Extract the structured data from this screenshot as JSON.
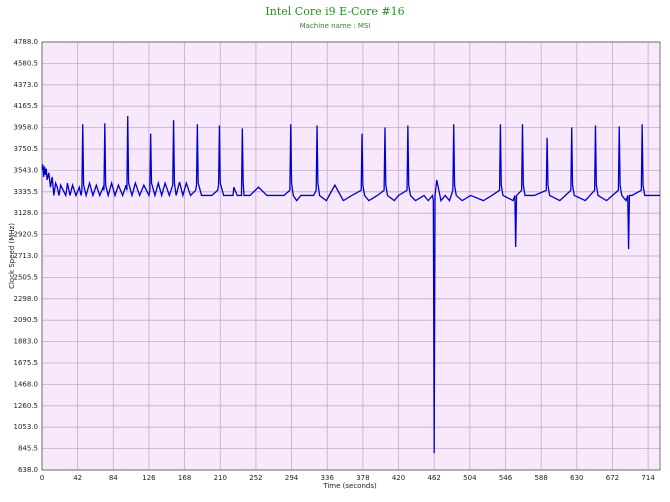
{
  "chart_data": {
    "type": "line",
    "title": "Intel Core i9 E-Core #16",
    "subtitle": "Machine name : MSI",
    "x_label": "Time (seconds)",
    "y_label": "Clock Speed (MHz)",
    "xlim": [
      0,
      728
    ],
    "ylim": [
      638,
      4788
    ],
    "xticks": [
      0,
      42,
      84,
      126,
      168,
      210,
      252,
      294,
      336,
      378,
      420,
      462,
      504,
      546,
      588,
      630,
      672,
      714
    ],
    "yticks": [
      {
        "value": 638,
        "label": "638.0"
      },
      845.5,
      {
        "value": 1053,
        "label": "1053.0"
      },
      1260.5,
      {
        "value": 1468,
        "label": "1468.0"
      },
      1675.5,
      {
        "value": 1883,
        "label": "1883.0"
      },
      2090.5,
      {
        "value": 2298,
        "label": "2298.0"
      },
      2505.5,
      {
        "value": 2713,
        "label": "2713.0"
      },
      2920.5,
      {
        "value": 3128,
        "label": "3128.0"
      },
      3335.5,
      {
        "value": 3543,
        "label": "3543.0"
      },
      3750.5,
      {
        "value": 3958,
        "label": "3958.0"
      },
      4165.5,
      {
        "value": 4373,
        "label": "4373.0"
      },
      4580.5,
      {
        "value": 4788,
        "label": "4788.0"
      }
    ],
    "grid": true,
    "x": [
      0,
      1,
      2,
      3,
      4,
      5,
      6,
      8,
      10,
      12,
      14,
      16,
      18,
      20,
      22,
      25,
      28,
      30,
      33,
      36,
      40,
      44,
      46,
      47,
      48,
      49,
      52,
      56,
      60,
      64,
      68,
      72,
      73,
      74,
      75,
      78,
      82,
      86,
      90,
      95,
      99,
      100,
      101,
      102,
      106,
      110,
      115,
      120,
      126,
      127,
      128,
      129,
      133,
      137,
      141,
      145,
      150,
      154,
      155,
      156,
      158,
      162,
      166,
      170,
      175,
      181,
      182,
      183,
      184,
      188,
      195,
      200,
      207,
      208,
      209,
      210,
      214,
      220,
      225,
      226,
      230,
      235,
      236,
      237,
      238,
      245,
      255,
      265,
      275,
      285,
      292,
      293,
      294,
      296,
      300,
      305,
      320,
      323,
      324,
      325,
      327,
      335,
      345,
      355,
      365,
      376,
      377,
      378,
      380,
      385,
      395,
      403,
      404,
      405,
      407,
      415,
      420,
      430,
      431,
      432,
      434,
      440,
      450,
      455,
      460,
      461,
      462,
      463,
      465,
      470,
      475,
      480,
      484,
      485,
      486,
      488,
      495,
      505,
      520,
      530,
      539,
      540,
      541,
      543,
      555,
      557,
      558,
      559,
      565,
      566,
      567,
      569,
      580,
      594,
      595,
      596,
      598,
      610,
      623,
      624,
      625,
      627,
      640,
      651,
      652,
      653,
      655,
      665,
      679,
      680,
      681,
      683,
      688,
      690,
      691,
      692,
      695,
      706,
      707,
      708,
      710,
      728
    ],
    "series": [
      {
        "name": "Clock Speed",
        "color": "#0000cc",
        "values": [
          3550,
          3600,
          3480,
          3580,
          3500,
          3560,
          3450,
          3520,
          3380,
          3480,
          3300,
          3420,
          3380,
          3300,
          3400,
          3350,
          3300,
          3420,
          3300,
          3400,
          3300,
          3380,
          3300,
          3350,
          3990,
          3400,
          3300,
          3420,
          3300,
          3400,
          3300,
          3380,
          3350,
          4000,
          3400,
          3300,
          3420,
          3300,
          3400,
          3300,
          3400,
          3350,
          4070,
          3420,
          3300,
          3420,
          3300,
          3400,
          3300,
          3350,
          3900,
          3420,
          3300,
          3420,
          3300,
          3420,
          3300,
          3400,
          4030,
          3420,
          3300,
          3430,
          3300,
          3420,
          3300,
          3350,
          3400,
          3990,
          3420,
          3300,
          3300,
          3300,
          3350,
          3400,
          3980,
          3420,
          3300,
          3300,
          3300,
          3380,
          3300,
          3300,
          3950,
          3420,
          3300,
          3300,
          3380,
          3300,
          3300,
          3300,
          3350,
          3990,
          3420,
          3300,
          3250,
          3300,
          3300,
          3350,
          3980,
          3420,
          3300,
          3250,
          3400,
          3250,
          3300,
          3350,
          3900,
          3400,
          3300,
          3250,
          3300,
          3350,
          3960,
          3400,
          3300,
          3250,
          3300,
          3350,
          3980,
          3400,
          3300,
          3250,
          3300,
          3250,
          3300,
          3250,
          800,
          3300,
          3450,
          3250,
          3300,
          3250,
          3350,
          3990,
          3400,
          3300,
          3250,
          3300,
          3250,
          3300,
          3350,
          3990,
          3400,
          3300,
          3250,
          3300,
          2800,
          3300,
          3350,
          3990,
          3400,
          3300,
          3300,
          3350,
          3860,
          3400,
          3300,
          3250,
          3350,
          3960,
          3400,
          3300,
          3250,
          3350,
          3980,
          3400,
          3300,
          3250,
          3350,
          3970,
          3400,
          3300,
          3250,
          3300,
          2780,
          3300,
          3300,
          3350,
          3990,
          3400,
          3300,
          3300
        ]
      }
    ]
  }
}
